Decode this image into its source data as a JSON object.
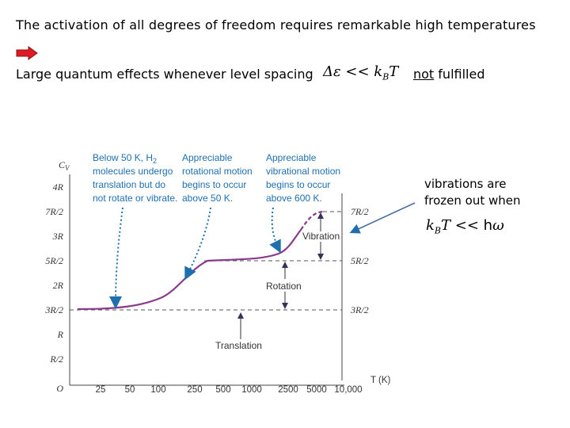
{
  "header": {
    "line1": "The activation of all degrees of freedom requires remarkable high temperatures",
    "line2": "Large quantum effects whenever level spacing",
    "formula_level": "Δε << k",
    "formula_level_sub": "B",
    "formula_level_tail": "T",
    "not_word": "not",
    "fulfilled_word": " fulfilled"
  },
  "side_note": {
    "text": "vibrations are\nfrozen out when",
    "formula_k": "k",
    "formula_sub": "B",
    "formula_t": "T << ",
    "formula_h": "h",
    "formula_omega": "ω"
  },
  "colors": {
    "curve": "#8a3a8c",
    "annotation": "#1f6fae",
    "arrow_fill": "#e01a22"
  },
  "diagram": {
    "y_axis_label": "C",
    "y_axis_sub": "V",
    "y_ticks": [
      "4R",
      "7R/2",
      "3R",
      "5R/2",
      "2R",
      "3R/2",
      "R",
      "R/2",
      "O"
    ],
    "right_ticks": [
      "7R/2",
      "5R/2",
      "3R/2"
    ],
    "x_ticks": [
      "25",
      "50",
      "100",
      "250",
      "500",
      "1000",
      "2500",
      "5000",
      "10,000"
    ],
    "x_axis_label": "T (K)",
    "annotations": [
      [
        "Below 50 K, H",
        "molecules undergo",
        "translation but do",
        "not rotate or vibrate."
      ],
      [
        "Appreciable",
        "rotational motion",
        "begins to occur",
        "above 50 K."
      ],
      [
        "Appreciable",
        "vibrational motion",
        "begins to occur",
        "above 600 K."
      ]
    ],
    "h2_subscript": "2",
    "regions": {
      "vibration": "Vibration",
      "rotation": "Rotation",
      "translation": "Translation"
    }
  }
}
